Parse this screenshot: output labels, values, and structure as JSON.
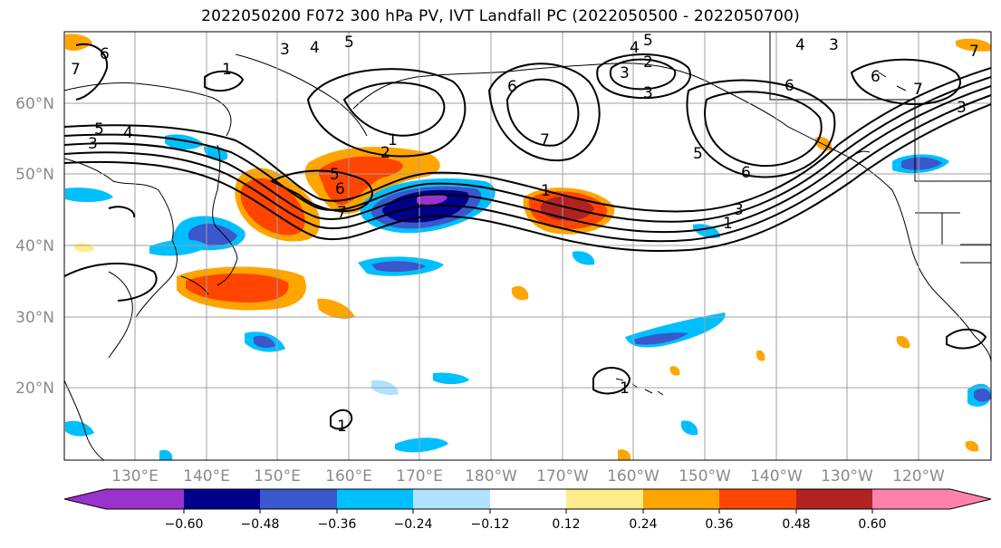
{
  "title": "2022050200 F072 300 hPa PV, IVT Landfall PC (2022050500 - 2022050700)",
  "map": {
    "lat_labels": [
      "60°N",
      "50°N",
      "40°N",
      "30°N",
      "20°N"
    ],
    "lon_labels": [
      "130°E",
      "140°E",
      "150°E",
      "160°E",
      "170°E",
      "180°W",
      "170°W",
      "160°W",
      "150°W",
      "140°W",
      "130°W",
      "120°W"
    ],
    "contour_labels": [
      "6",
      "7",
      "3",
      "4",
      "5",
      "1",
      "5",
      "4",
      "3",
      "2",
      "6",
      "7",
      "1",
      "5",
      "6",
      "1",
      "7",
      "6",
      "3",
      "2",
      "4",
      "5",
      "3",
      "3",
      "6",
      "3",
      "4",
      "6",
      "5",
      "7",
      "1",
      "3",
      "1",
      "7",
      "1"
    ]
  },
  "colorbar": {
    "ticks": [
      "−0.60",
      "−0.48",
      "−0.36",
      "−0.24",
      "−0.12",
      "0.12",
      "0.24",
      "0.36",
      "0.48",
      "0.60"
    ],
    "colors": [
      "#9a32cd",
      "#00008b",
      "#3a57cc",
      "#00bfff",
      "#b0e2ff",
      "#ffffff",
      "#ffec8b",
      "#ffa500",
      "#ff4500",
      "#b22222",
      "#ff82ab"
    ]
  }
}
